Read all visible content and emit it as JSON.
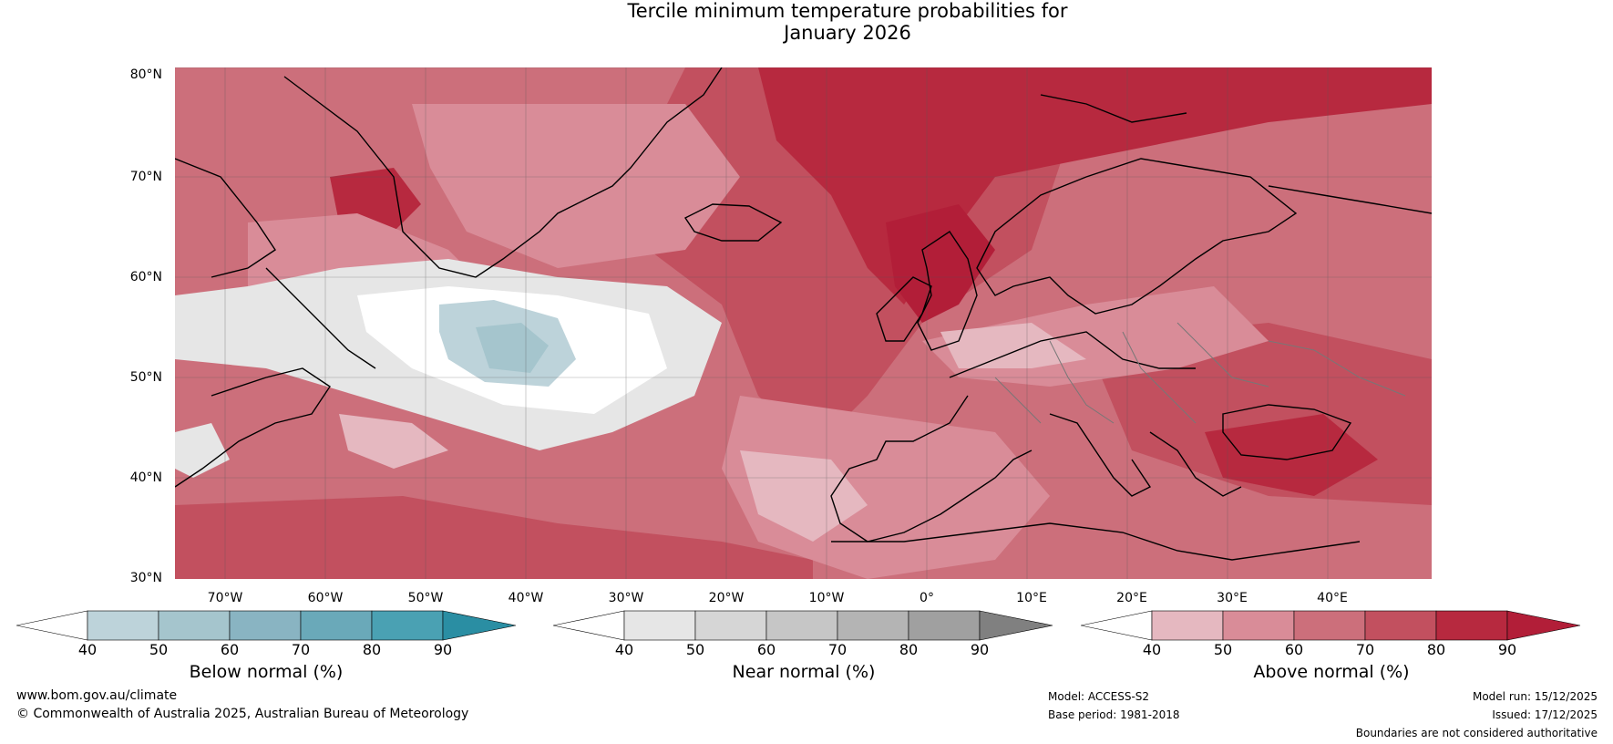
{
  "title": {
    "line1": "Tercile minimum temperature probabilities for",
    "line2": "January 2026"
  },
  "axes": {
    "lat_labels": [
      "80°N",
      "70°N",
      "60°N",
      "50°N",
      "40°N",
      "30°N"
    ],
    "lon_labels": [
      "70°W",
      "60°W",
      "50°W",
      "40°W",
      "30°W",
      "20°W",
      "10°W",
      "0°",
      "10°E",
      "20°E",
      "30°E",
      "40°E"
    ]
  },
  "colorbars": {
    "below": {
      "label": "Below normal (%)",
      "ticks": [
        "40",
        "50",
        "60",
        "70",
        "80",
        "90"
      ],
      "colors": [
        "#ffffff",
        "#bdd3da",
        "#a5c5cd",
        "#89b4c2",
        "#6aa9b9",
        "#4aa1b3",
        "#2a8ea3"
      ]
    },
    "near": {
      "label": "Near normal (%)",
      "ticks": [
        "40",
        "50",
        "60",
        "70",
        "80",
        "90"
      ],
      "colors": [
        "#ffffff",
        "#e6e6e6",
        "#d6d6d6",
        "#c6c6c6",
        "#b4b4b4",
        "#a0a0a0",
        "#808080"
      ]
    },
    "above": {
      "label": "Above normal (%)",
      "ticks": [
        "40",
        "50",
        "60",
        "70",
        "80",
        "90"
      ],
      "colors": [
        "#ffffff",
        "#e5b8c0",
        "#d98c98",
        "#cc6f7b",
        "#c2505f",
        "#b7293f",
        "#b21e38"
      ]
    }
  },
  "footer": {
    "website": "www.bom.gov.au/climate",
    "copyright": "© Commonwealth of Australia 2025, Australian Bureau of Meteorology",
    "model": "Model: ACCESS-S2",
    "base_period": "Base period: 1981-2018",
    "model_run": "Model run: 15/12/2025",
    "issued": "Issued: 17/12/2025",
    "disclaimer": "Boundaries are not considered authoritative"
  }
}
